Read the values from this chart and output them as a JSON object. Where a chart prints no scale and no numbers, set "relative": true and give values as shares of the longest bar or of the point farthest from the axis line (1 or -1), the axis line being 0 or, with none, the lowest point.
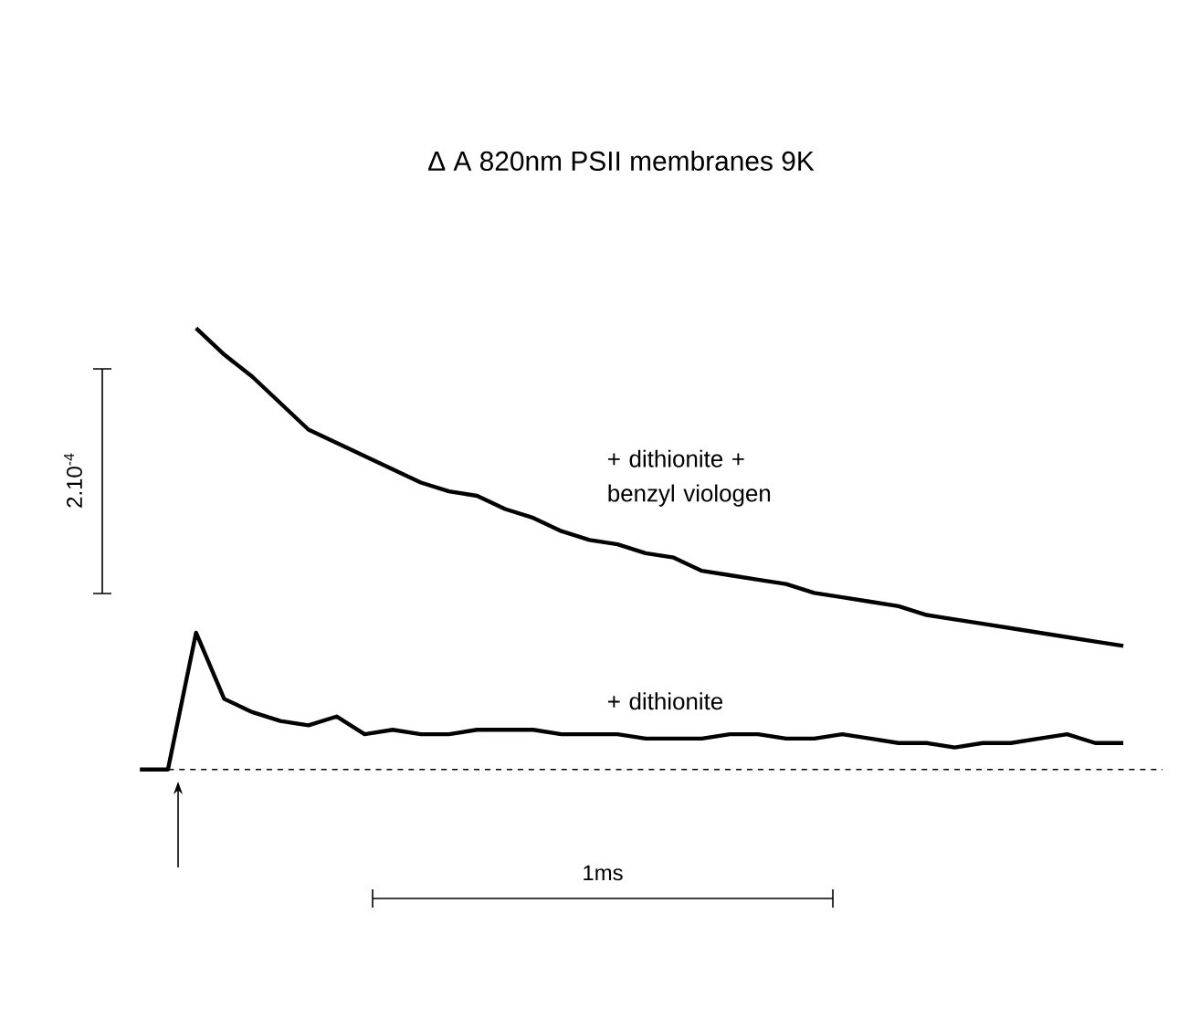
{
  "chart_data": {
    "type": "line",
    "title": "Δ A 820nm   PSII membranes   9K",
    "relative": true,
    "marker": "none",
    "line_style": "solid",
    "annotations": [
      "2.10$^{-4}$",
      "1ms"
    ],
    "categories": [
      null,
      null,
      null,
      null,
      null,
      null,
      null,
      null,
      null,
      null,
      null,
      null,
      null,
      null,
      null,
      null,
      null,
      null,
      null,
      null,
      null,
      null,
      null,
      null,
      null,
      null,
      null,
      null,
      null,
      null,
      null,
      null,
      null,
      null,
      null,
      null
    ],
    "series": [
      {
        "name": "+ dithionite + benzyl viologen",
        "color": "#000000",
        "values": [
          null,
          null,
          1.0,
          0.94,
          0.89,
          0.83,
          0.77,
          0.74,
          0.71,
          0.68,
          0.65,
          0.63,
          0.62,
          0.59,
          0.57,
          0.54,
          0.52,
          0.51,
          0.49,
          0.48,
          0.45,
          0.44,
          0.43,
          0.42,
          0.4,
          0.39,
          0.38,
          0.37,
          0.35,
          0.34,
          0.33,
          0.32,
          0.31,
          0.3,
          0.29,
          0.28
        ]
      },
      {
        "name": "+ dithionite",
        "color": "#000000",
        "values": [
          0.0,
          0.0,
          0.31,
          0.16,
          0.13,
          0.11,
          0.1,
          0.12,
          0.08,
          0.09,
          0.08,
          0.08,
          0.09,
          0.09,
          0.09,
          0.08,
          0.08,
          0.08,
          0.07,
          0.07,
          0.07,
          0.08,
          0.08,
          0.07,
          0.07,
          0.08,
          0.07,
          0.06,
          0.06,
          0.05,
          0.06,
          0.06,
          0.07,
          0.08,
          0.06,
          0.06
        ]
      }
    ]
  }
}
